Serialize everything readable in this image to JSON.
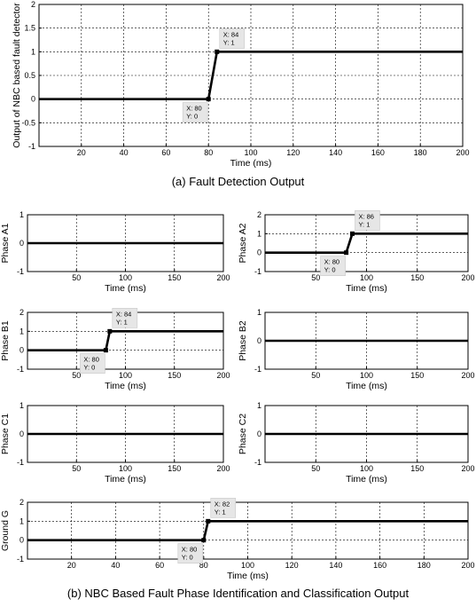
{
  "captions": {
    "a": "(a) Fault Detection Output",
    "b": "(b) NBC Based Fault Phase Identification and Classification Output"
  },
  "chart_data": [
    {
      "id": "detection",
      "type": "line",
      "title": "",
      "ylabel": "Output of NBC based fault detector",
      "xlabel": "Time (ms)",
      "xlim": [
        0,
        200
      ],
      "ylim": [
        -1,
        2
      ],
      "xticks": [
        20,
        40,
        60,
        80,
        100,
        120,
        140,
        160,
        180,
        200
      ],
      "yticks": [
        -1,
        -0.5,
        0,
        0.5,
        1,
        1.5,
        2
      ],
      "grid": true,
      "series": [
        {
          "x": [
            0,
            80,
            84,
            200
          ],
          "y": [
            0,
            0,
            1,
            1
          ]
        }
      ],
      "datatips": [
        {
          "x": 80,
          "y": 0,
          "text": [
            "X: 80",
            "Y: 0"
          ],
          "placement": "below-left"
        },
        {
          "x": 84,
          "y": 1,
          "text": [
            "X: 84",
            "Y: 1"
          ],
          "placement": "above-right"
        }
      ]
    },
    {
      "id": "A1",
      "type": "line",
      "title": "",
      "ylabel": "Phase A1",
      "xlabel": "Time (ms)",
      "xlim": [
        0,
        200
      ],
      "ylim": [
        -1,
        1
      ],
      "xticks": [
        50,
        100,
        150,
        200
      ],
      "yticks": [
        -1,
        0,
        1
      ],
      "grid": true,
      "series": [
        {
          "x": [
            0,
            200
          ],
          "y": [
            0,
            0
          ]
        }
      ],
      "datatips": []
    },
    {
      "id": "A2",
      "type": "line",
      "title": "",
      "ylabel": "Phase A2",
      "xlabel": "Time (ms)",
      "xlim": [
        0,
        200
      ],
      "ylim": [
        -1,
        2
      ],
      "xticks": [
        50,
        100,
        150,
        200
      ],
      "yticks": [
        -1,
        0,
        1,
        2
      ],
      "grid": true,
      "series": [
        {
          "x": [
            0,
            80,
            86,
            200
          ],
          "y": [
            0,
            0,
            1,
            1
          ]
        }
      ],
      "datatips": [
        {
          "x": 80,
          "y": 0,
          "text": [
            "X: 80",
            "Y: 0"
          ],
          "placement": "below-left"
        },
        {
          "x": 86,
          "y": 1,
          "text": [
            "X: 86",
            "Y: 1"
          ],
          "placement": "above-right"
        }
      ]
    },
    {
      "id": "B1",
      "type": "line",
      "title": "",
      "ylabel": "Phase B1",
      "xlabel": "Time (ms)",
      "xlim": [
        0,
        200
      ],
      "ylim": [
        -1,
        2
      ],
      "xticks": [
        50,
        100,
        150,
        200
      ],
      "yticks": [
        -1,
        0,
        1,
        2
      ],
      "grid": true,
      "series": [
        {
          "x": [
            0,
            80,
            84,
            200
          ],
          "y": [
            0,
            0,
            1,
            1
          ]
        }
      ],
      "datatips": [
        {
          "x": 80,
          "y": 0,
          "text": [
            "X: 80",
            "Y: 0"
          ],
          "placement": "below-left"
        },
        {
          "x": 84,
          "y": 1,
          "text": [
            "X: 84",
            "Y: 1"
          ],
          "placement": "above-right"
        }
      ]
    },
    {
      "id": "B2",
      "type": "line",
      "title": "",
      "ylabel": "Phase B2",
      "xlabel": "Time (ms)",
      "xlim": [
        0,
        200
      ],
      "ylim": [
        -1,
        1
      ],
      "xticks": [
        50,
        100,
        150,
        200
      ],
      "yticks": [
        -1,
        0,
        1
      ],
      "grid": true,
      "series": [
        {
          "x": [
            0,
            200
          ],
          "y": [
            0,
            0
          ]
        }
      ],
      "datatips": []
    },
    {
      "id": "C1",
      "type": "line",
      "title": "",
      "ylabel": "Phase C1",
      "xlabel": "Time (ms)",
      "xlim": [
        0,
        200
      ],
      "ylim": [
        -1,
        1
      ],
      "xticks": [
        50,
        100,
        150,
        200
      ],
      "yticks": [
        -1,
        0,
        1
      ],
      "grid": true,
      "series": [
        {
          "x": [
            0,
            200
          ],
          "y": [
            0,
            0
          ]
        }
      ],
      "datatips": []
    },
    {
      "id": "C2",
      "type": "line",
      "title": "",
      "ylabel": "Phase C2",
      "xlabel": "Time (ms)",
      "xlim": [
        0,
        200
      ],
      "ylim": [
        -1,
        1
      ],
      "xticks": [
        50,
        100,
        150,
        200
      ],
      "yticks": [
        -1,
        0,
        1
      ],
      "grid": true,
      "series": [
        {
          "x": [
            0,
            200
          ],
          "y": [
            0,
            0
          ]
        }
      ],
      "datatips": []
    },
    {
      "id": "G",
      "type": "line",
      "title": "",
      "ylabel": "Ground G",
      "xlabel": "Time (ms)",
      "xlim": [
        0,
        200
      ],
      "ylim": [
        -1,
        2
      ],
      "xticks": [
        20,
        40,
        60,
        80,
        100,
        120,
        140,
        160,
        180,
        200
      ],
      "yticks": [
        -1,
        0,
        1,
        2
      ],
      "grid": true,
      "series": [
        {
          "x": [
            0,
            80,
            82,
            200
          ],
          "y": [
            0,
            0,
            1,
            1
          ]
        }
      ],
      "datatips": [
        {
          "x": 80,
          "y": 0,
          "text": [
            "X: 80",
            "Y: 0"
          ],
          "placement": "below-left"
        },
        {
          "x": 82,
          "y": 1,
          "text": [
            "X: 82",
            "Y: 1"
          ],
          "placement": "above-right"
        }
      ]
    }
  ]
}
